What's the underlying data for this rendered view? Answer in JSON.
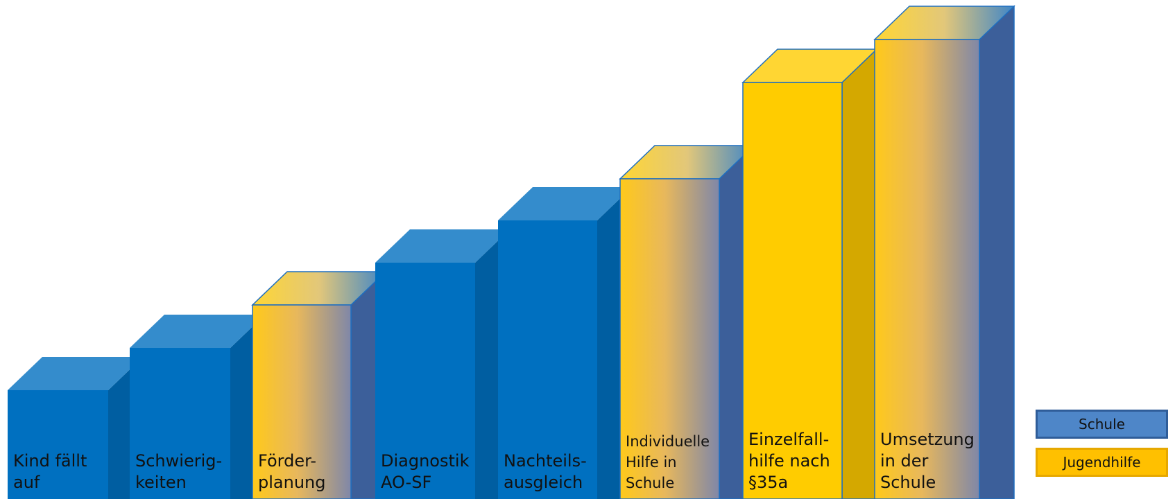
{
  "steps": [
    {
      "id": "kind-faellt-auf",
      "lines": [
        "Kind fällt",
        "auf"
      ],
      "type": "schule"
    },
    {
      "id": "schwierigkeiten",
      "lines": [
        "Schwierig-",
        "keiten"
      ],
      "type": "schule"
    },
    {
      "id": "foerderplanung",
      "lines": [
        "Förder-",
        "planung"
      ],
      "type": "mixed"
    },
    {
      "id": "diagnostik",
      "lines": [
        "Diagnostik",
        "AO-SF"
      ],
      "type": "schule"
    },
    {
      "id": "nachteilsausgleich",
      "lines": [
        "Nachteils-",
        "ausgleich"
      ],
      "type": "schule"
    },
    {
      "id": "individuelle-hilfe",
      "lines": [
        "Individuelle",
        "Hilfe in",
        "Schule"
      ],
      "type": "mixed"
    },
    {
      "id": "einzelfallhilfe",
      "lines": [
        "Einzelfall-",
        "hilfe nach",
        "§35a"
      ],
      "type": "jugendhilfe"
    },
    {
      "id": "umsetzung",
      "lines": [
        "Umsetzung",
        "in der",
        "Schule"
      ],
      "type": "mixed"
    }
  ],
  "legend": {
    "schule": "Schule",
    "jugendhilfe": "Jugendhilfe"
  },
  "colors": {
    "schule_front": "#0070c0",
    "schule_top": "#348ccc",
    "schule_side": "#005ea1",
    "jugendhilfe_front": "#ffcc00",
    "jugendhilfe_top": "#ffd633",
    "jugendhilfe_side": "#d4a800",
    "mixed_end": "#7f87a8",
    "outline": "#1f6fc0"
  }
}
